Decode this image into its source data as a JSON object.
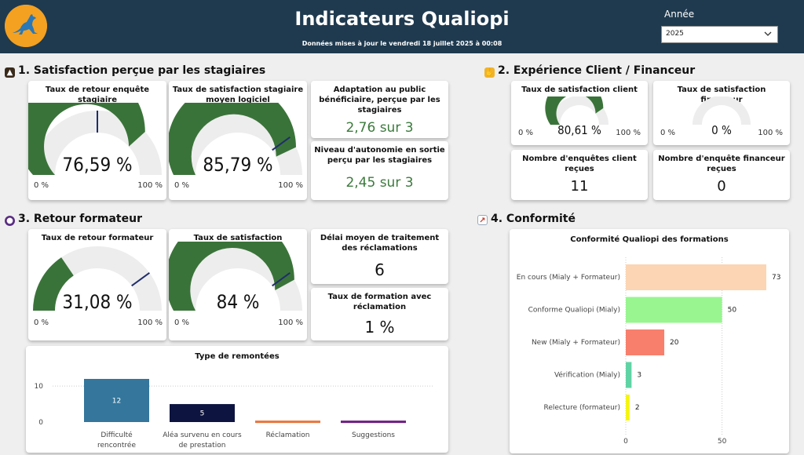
{
  "header": {
    "title": "Indicateurs Qualiopi",
    "subtitle": "Données mises à jour le vendredi 18 juillet 2025 à 00:08",
    "year_label": "Année",
    "year_value": "2025",
    "logo_icon": "kangaroo-logo-icon"
  },
  "sections": {
    "s1": "1. Satisfaction perçue par les stagiaires",
    "s2": "2. Expérience Client / Financeur",
    "s3": "3. Retour formateur",
    "s4": "4. Conformité"
  },
  "gauges": {
    "g1": {
      "title": "Taux de retour enquête stagiaire",
      "value": "76,59 %",
      "pct": 76.59,
      "target": 50,
      "min": "0 %",
      "max": "100 %"
    },
    "g2": {
      "title": "Taux de satisfaction stagiaire moyen logiciel",
      "value": "85,79 %",
      "pct": 85.79,
      "target": 80,
      "min": "0 %",
      "max": "100 %"
    },
    "g3": {
      "title": "Taux de satisfaction client",
      "value": "80,61 %",
      "pct": 80.61,
      "min": "0 %",
      "max": "100 %"
    },
    "g4": {
      "title": "Taux de satisfaction financeur",
      "value": "0 %",
      "pct": 0,
      "min": "0 %",
      "max": "100 %"
    },
    "g5": {
      "title": "Taux de retour formateur",
      "value": "31,08 %",
      "pct": 31.08,
      "target": 80,
      "min": "0 %",
      "max": "100 %"
    },
    "g6": {
      "title": "Taux de satisfaction formateur",
      "value": "84 %",
      "pct": 84,
      "target": 80,
      "min": "0 %",
      "max": "100 %"
    }
  },
  "kpis": {
    "adaptation": {
      "title": "Adaptation au public bénéficiaire, perçue par les stagiaires",
      "value": "2,76 sur 3"
    },
    "autonomie": {
      "title": "Niveau d'autonomie en sortie perçu par les stagiaires",
      "value": "2,45 sur 3"
    },
    "enquetes_client": {
      "title": "Nombre d'enquêtes client reçues",
      "value": "11"
    },
    "enquete_financeur": {
      "title": "Nombre d'enquête financeur reçues",
      "value": "0"
    },
    "delai": {
      "title": "Délai moyen de traitement des réclamations",
      "value": "6"
    },
    "taux_reclamation": {
      "title": "Taux de formation avec réclamation",
      "value": "1 %"
    }
  },
  "colors": {
    "gauge_fill": "#3a7339",
    "gauge_bg": "#ededed",
    "target_line": "#1f2d6b",
    "kpi_green": "#3b7a3c",
    "header_bg": "#1f3a4f"
  },
  "chart_data": [
    {
      "type": "bar",
      "title": "Type de remontées",
      "categories": [
        "Difficulté rencontrée",
        "Aléa survenu en cours de prestation",
        "Réclamation",
        "Suggestions"
      ],
      "values": [
        12,
        5,
        0.4,
        0.4
      ],
      "data_labels": [
        "12",
        "5",
        "",
        ""
      ],
      "colors": [
        "#34769c",
        "#0d1440",
        "#e8733a",
        "#6a1b7f"
      ],
      "ylim": [
        0,
        14
      ],
      "yticks": [
        0,
        10
      ],
      "grid": true
    },
    {
      "type": "bar",
      "orientation": "horizontal",
      "title": "Conformité Qualiopi des formations",
      "categories": [
        "En cours (Mialy + Formateur)",
        "Conforme Qualiopi (Mialy)",
        "New (Mialy + Formateur)",
        "Vérification (Mialy)",
        "Relecture (formateur)"
      ],
      "values": [
        73,
        50,
        20,
        3,
        2
      ],
      "colors": [
        "#fcd5b4",
        "#98f590",
        "#f77f6c",
        "#5fd3a4",
        "#f5f514"
      ],
      "xlim": [
        0,
        80
      ],
      "xticks": [
        0,
        50
      ],
      "grid": true
    }
  ]
}
